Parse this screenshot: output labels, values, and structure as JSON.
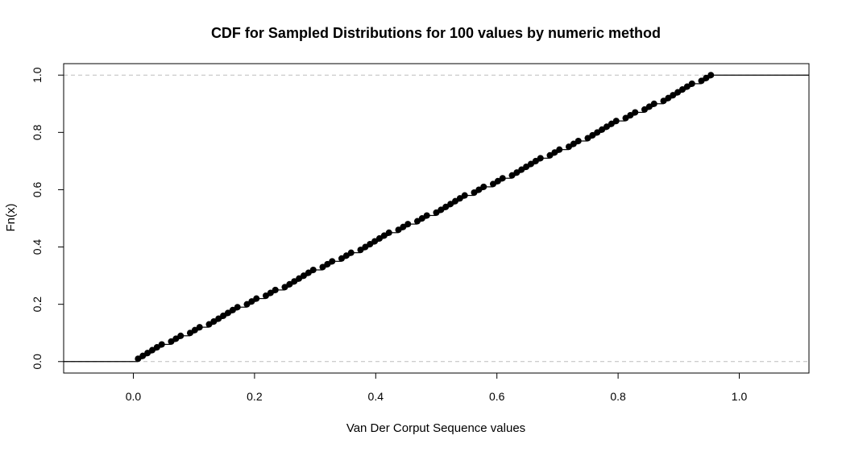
{
  "chart_data": {
    "type": "scatter",
    "title": "CDF for Sampled Distributions for 100 values by numeric method",
    "xlabel": "Van Der Corput Sequence values",
    "ylabel": "Fn(x)",
    "xlim": [
      -0.115,
      1.115
    ],
    "ylim": [
      -0.04,
      1.04
    ],
    "x_ticks": [
      0.0,
      0.2,
      0.4,
      0.6,
      0.8,
      1.0
    ],
    "x_tick_labels": [
      "0.0",
      "0.2",
      "0.4",
      "0.6",
      "0.8",
      "1.0"
    ],
    "y_ticks": [
      0.0,
      0.2,
      0.4,
      0.6,
      0.8,
      1.0
    ],
    "y_tick_labels": [
      "0.0",
      "0.2",
      "0.4",
      "0.6",
      "0.8",
      "1.0"
    ],
    "reference_lines_y": [
      0.0,
      1.0
    ],
    "grid": false,
    "series": [
      {
        "x": [
          0.0078125,
          0.015625,
          0.0234375,
          0.03125,
          0.0390625,
          0.046875,
          0.0625,
          0.0703125,
          0.078125,
          0.09375,
          0.1015625,
          0.109375,
          0.125,
          0.1328125,
          0.140625,
          0.1484375,
          0.15625,
          0.1640625,
          0.171875,
          0.1875,
          0.1953125,
          0.203125,
          0.21875,
          0.2265625,
          0.234375,
          0.25,
          0.2578125,
          0.265625,
          0.2734375,
          0.28125,
          0.2890625,
          0.296875,
          0.3125,
          0.3203125,
          0.328125,
          0.34375,
          0.3515625,
          0.359375,
          0.375,
          0.3828125,
          0.390625,
          0.3984375,
          0.40625,
          0.4140625,
          0.421875,
          0.4375,
          0.4453125,
          0.453125,
          0.46875,
          0.4765625,
          0.484375,
          0.5,
          0.5078125,
          0.515625,
          0.5234375,
          0.53125,
          0.5390625,
          0.546875,
          0.5625,
          0.5703125,
          0.578125,
          0.59375,
          0.6015625,
          0.609375,
          0.625,
          0.6328125,
          0.640625,
          0.6484375,
          0.65625,
          0.6640625,
          0.671875,
          0.6875,
          0.6953125,
          0.703125,
          0.71875,
          0.7265625,
          0.734375,
          0.75,
          0.7578125,
          0.765625,
          0.7734375,
          0.78125,
          0.7890625,
          0.796875,
          0.8125,
          0.8203125,
          0.828125,
          0.84375,
          0.8515625,
          0.859375,
          0.875,
          0.8828125,
          0.890625,
          0.8984375,
          0.90625,
          0.9140625,
          0.921875,
          0.9375,
          0.9453125,
          0.953125
        ],
        "y": [
          0.01,
          0.02,
          0.03,
          0.04,
          0.05,
          0.06,
          0.07,
          0.08,
          0.09,
          0.1,
          0.11,
          0.12,
          0.13,
          0.14,
          0.15,
          0.16,
          0.17,
          0.18,
          0.19,
          0.2,
          0.21,
          0.22,
          0.23,
          0.24,
          0.25,
          0.26,
          0.27,
          0.28,
          0.29,
          0.3,
          0.31,
          0.32,
          0.33,
          0.34,
          0.35,
          0.36,
          0.37,
          0.38,
          0.39,
          0.4,
          0.41,
          0.42,
          0.43,
          0.44,
          0.45,
          0.46,
          0.47,
          0.48,
          0.49,
          0.5,
          0.51,
          0.52,
          0.53,
          0.54,
          0.55,
          0.56,
          0.57,
          0.58,
          0.59,
          0.6,
          0.61,
          0.62,
          0.63,
          0.64,
          0.65,
          0.66,
          0.67,
          0.68,
          0.69,
          0.7,
          0.71,
          0.72,
          0.73,
          0.74,
          0.75,
          0.76,
          0.77,
          0.78,
          0.79,
          0.8,
          0.81,
          0.82,
          0.83,
          0.84,
          0.85,
          0.86,
          0.87,
          0.88,
          0.89,
          0.9,
          0.91,
          0.92,
          0.93,
          0.94,
          0.95,
          0.96,
          0.97,
          0.98,
          0.99,
          1.0
        ]
      }
    ]
  }
}
